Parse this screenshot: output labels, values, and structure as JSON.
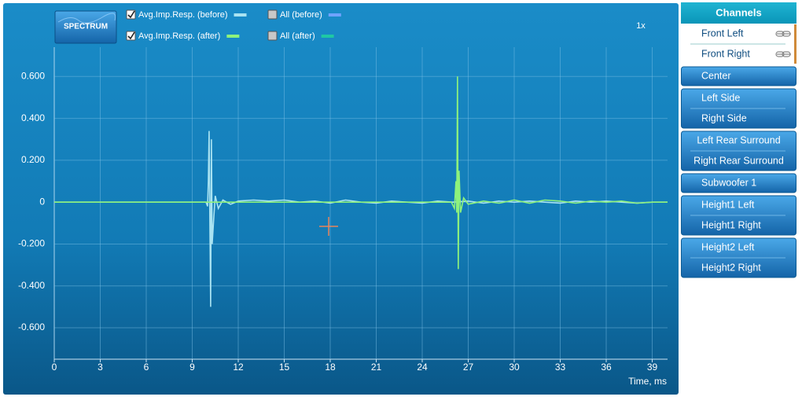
{
  "chart_data": {
    "type": "line",
    "x_label": "Time, ms",
    "zoom": "1x",
    "button": "SPECTRUM",
    "xlim": [
      0,
      40
    ],
    "xticks": [
      0,
      3,
      6,
      9,
      12,
      15,
      18,
      21,
      24,
      27,
      30,
      33,
      36,
      39
    ],
    "ylim": [
      -0.75,
      0.74
    ],
    "yticks": [
      {
        "value": -0.6,
        "label": "-0.600"
      },
      {
        "value": -0.4,
        "label": "-0.400"
      },
      {
        "value": -0.2,
        "label": "-0.200"
      },
      0,
      {
        "value": 0.2,
        "label": "0.200"
      },
      {
        "value": 0.4,
        "label": "0.400"
      },
      {
        "value": 0.6,
        "label": "0.600"
      }
    ],
    "grid": true,
    "series": [
      {
        "name": "Avg.Imp.Resp. (before)",
        "color": "#a9e3f2",
        "checked": true,
        "x": [
          0,
          9.9,
          10.0,
          10.05,
          10.1,
          10.15,
          10.2,
          10.25,
          10.3,
          10.4,
          10.5,
          10.7,
          11,
          11.5,
          12,
          13,
          14,
          15,
          16,
          17,
          18,
          19,
          20,
          21,
          22,
          23,
          24,
          25,
          26,
          27,
          28,
          29,
          30,
          31,
          32,
          33,
          34,
          35,
          36,
          37,
          38,
          39,
          40
        ],
        "values": [
          0,
          0,
          -0.02,
          0.1,
          0.34,
          -0.1,
          -0.5,
          0.3,
          -0.2,
          -0.08,
          0.03,
          -0.03,
          0.01,
          -0.01,
          0.005,
          0.01,
          0.005,
          0.01,
          0,
          0.005,
          -0.005,
          0.01,
          0,
          -0.005,
          0.005,
          0,
          -0.005,
          0.005,
          0,
          0.005,
          -0.005,
          0.005,
          0,
          0.005,
          0,
          -0.005,
          0.005,
          0,
          0.005,
          0,
          -0.005,
          0,
          0
        ]
      },
      {
        "name": "Avg.Imp.Resp. (after)",
        "color": "#8ef27c",
        "checked": true,
        "x": [
          0,
          25.9,
          26.1,
          26.2,
          26.25,
          26.3,
          26.35,
          26.4,
          26.5,
          26.7,
          27,
          28,
          29,
          30,
          31,
          32,
          33,
          34,
          35,
          36,
          37,
          38,
          39,
          40
        ],
        "values": [
          0,
          0,
          -0.03,
          0.1,
          -0.05,
          0.6,
          -0.32,
          0.15,
          -0.05,
          0.02,
          -0.01,
          0.005,
          -0.005,
          0.01,
          -0.005,
          0.01,
          0.005,
          -0.005,
          0.005,
          0,
          0.005,
          -0.005,
          0,
          0
        ]
      }
    ],
    "toggles": [
      {
        "name": "All (before)",
        "color": "#6fa3ff",
        "checked": false
      },
      {
        "name": "All (after)",
        "color": "#1fc8a4",
        "checked": false
      }
    ]
  },
  "channels": {
    "title": "Channels",
    "groups": [
      [
        "Front Left",
        "Front Right"
      ],
      [
        "Center"
      ],
      [
        "Left Side",
        "Right Side"
      ],
      [
        "Left Rear Surround",
        "Right Rear Surround"
      ],
      [
        "Subwoofer 1"
      ],
      [
        "Height1 Left",
        "Height1 Right"
      ],
      [
        "Height2 Left",
        "Height2 Right"
      ]
    ]
  }
}
